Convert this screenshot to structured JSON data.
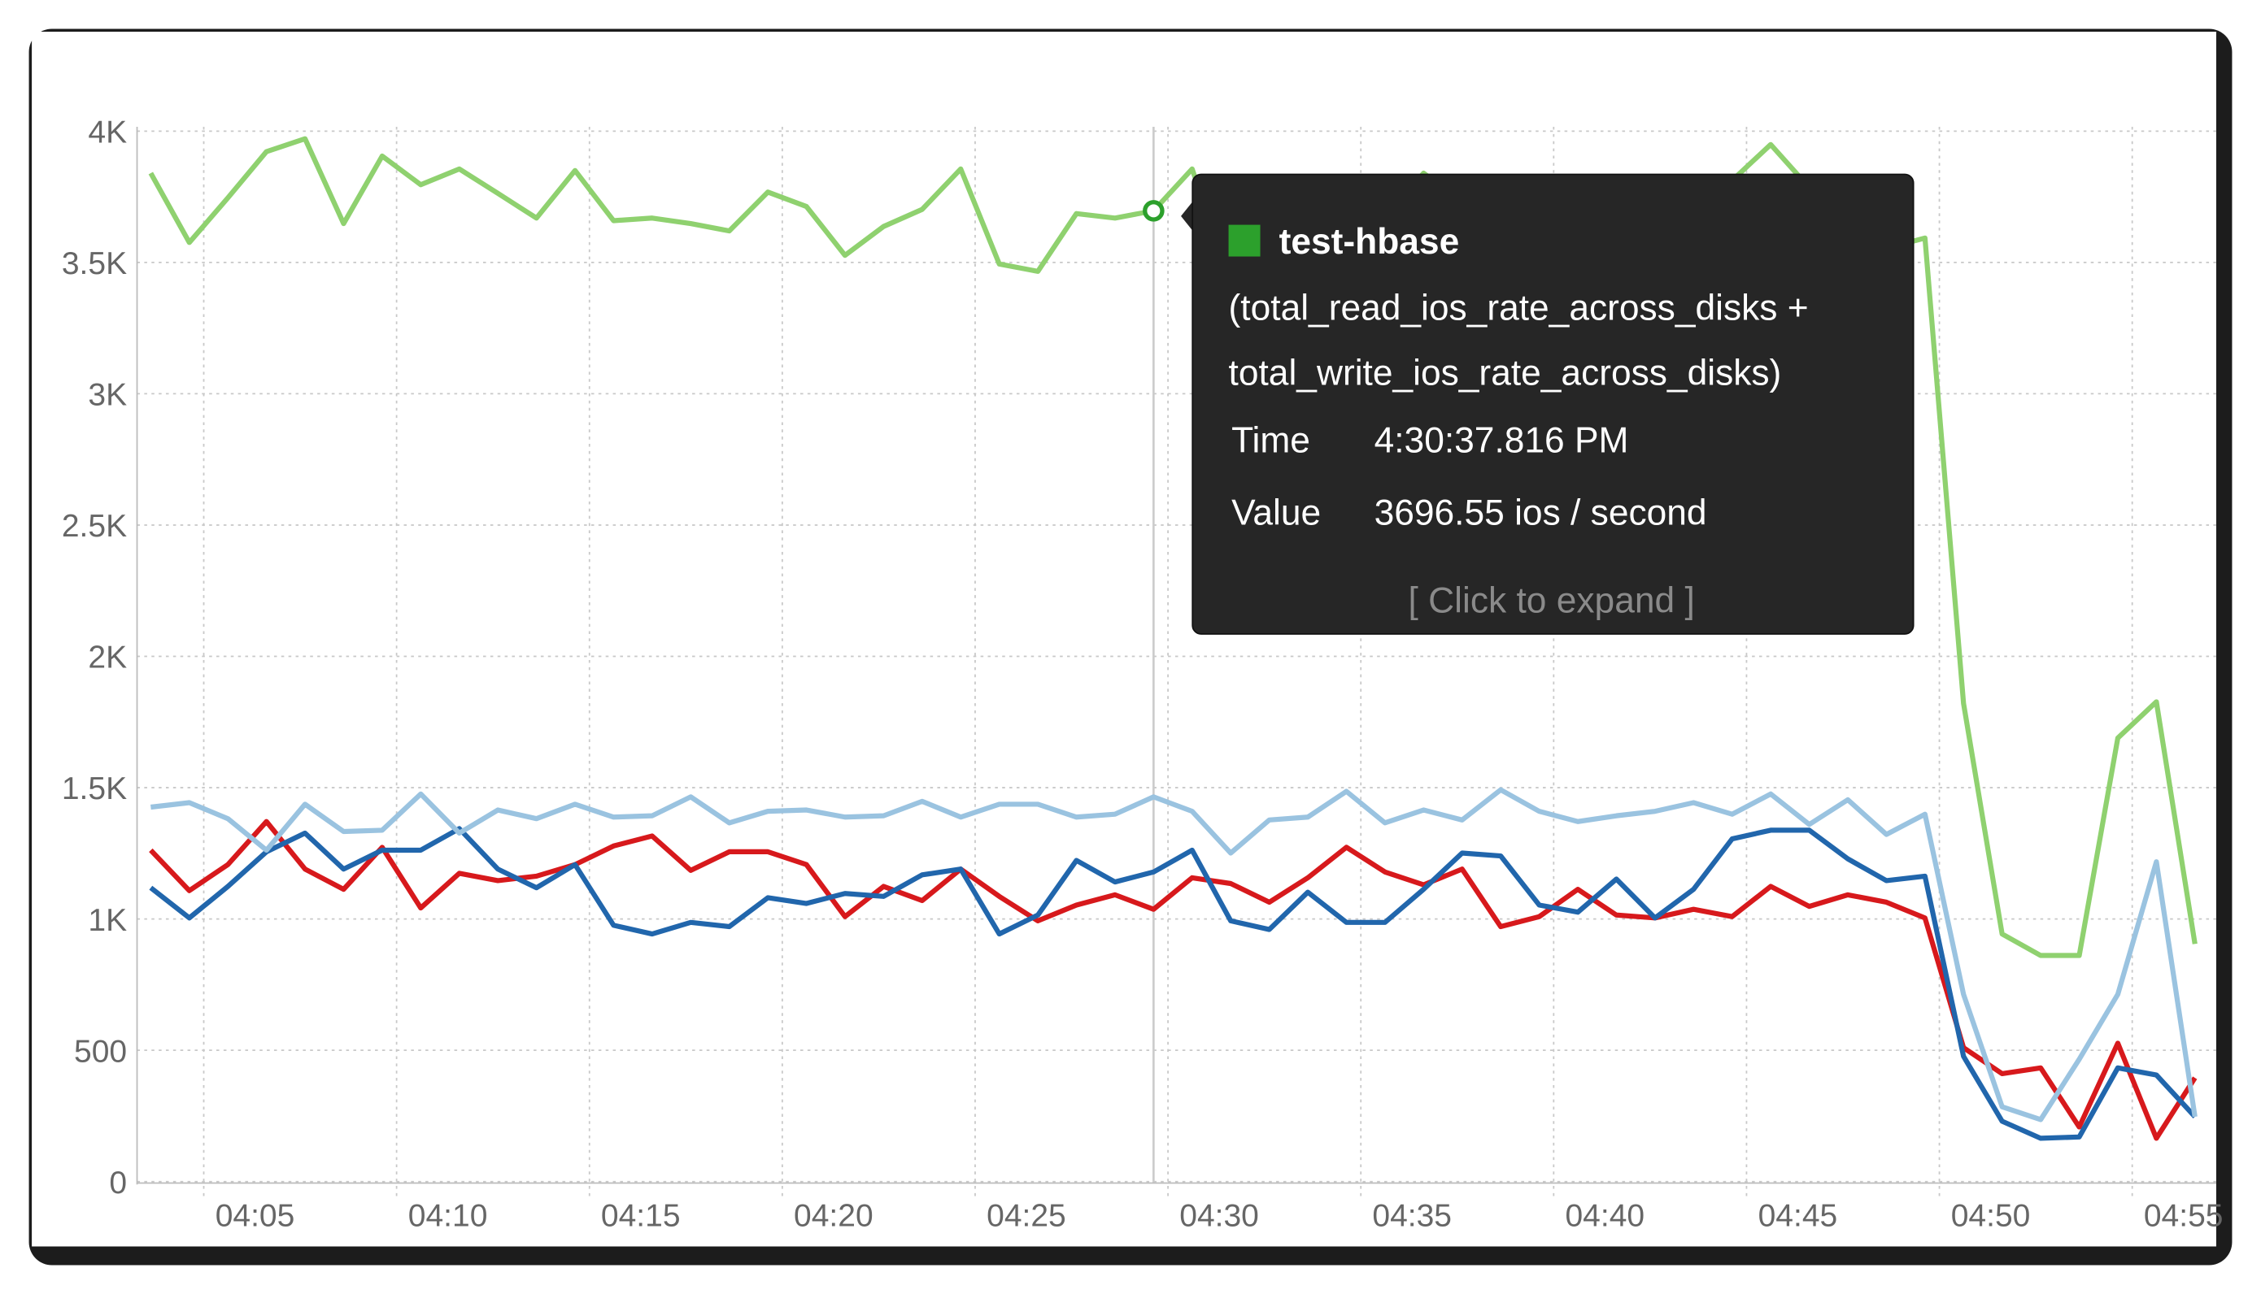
{
  "chart_data": {
    "type": "line",
    "categories": [
      null,
      "04:05",
      null,
      null,
      null,
      null,
      "04:10",
      null,
      null,
      null,
      null,
      "04:15",
      null,
      null,
      null,
      null,
      "04:20",
      null,
      null,
      null,
      null,
      "04:25",
      null,
      null,
      null,
      null,
      "04:30",
      null,
      null,
      null,
      null,
      "04:35",
      null,
      null,
      null,
      null,
      "04:40",
      null,
      null,
      null,
      null,
      "04:45",
      null,
      null,
      null,
      null,
      "04:50",
      null,
      null,
      null,
      null,
      "04:55",
      null,
      null
    ],
    "ylim": [
      0,
      4000
    ],
    "yticks": [
      0,
      500,
      {
        "value": 1000,
        "label": "1K"
      },
      {
        "value": 1500,
        "label": "1.5K"
      },
      {
        "value": 2000,
        "label": "2K"
      },
      {
        "value": 2500,
        "label": "2.5K"
      },
      {
        "value": 3000,
        "label": "3K"
      },
      {
        "value": 3500,
        "label": "3.5K"
      },
      {
        "value": 4000,
        "label": "4K"
      }
    ],
    "grid": true,
    "series": [
      {
        "name": "test-hbase",
        "color": "#8fd16f",
        "values": [
          3840,
          3576,
          3746,
          3922,
          3971,
          3648,
          3905,
          3796,
          3856,
          3763,
          3669,
          3850,
          3659,
          3669,
          3648,
          3620,
          3768,
          3713,
          3527,
          3637,
          3702,
          3856,
          3494,
          3466,
          3686,
          3669,
          3696.55,
          3856,
          3428,
          3700,
          3768,
          3565,
          3675,
          3840,
          3730,
          3510,
          3538,
          3620,
          3455,
          3620,
          3730,
          3812,
          3949,
          3785,
          3796,
          3554,
          3593,
          1821,
          943,
          861,
          861,
          1689,
          1827,
          905
        ]
      },
      {
        "color": "#9ac3e0",
        "values": [
          1426,
          1443,
          1382,
          1262,
          1437,
          1333,
          1338,
          1476,
          1327,
          1415,
          1382,
          1437,
          1388,
          1393,
          1465,
          1366,
          1410,
          1415,
          1388,
          1393,
          1448,
          1388,
          1437,
          1437,
          1388,
          1399,
          1465,
          1410,
          1251,
          1377,
          1388,
          1486,
          1366,
          1415,
          1377,
          1492,
          1410,
          1371,
          1393,
          1410,
          1443,
          1399,
          1476,
          1360,
          1454,
          1322,
          1399,
          713,
          285,
          236,
          466,
          713,
          1218,
          247
        ]
      },
      {
        "color": "#2166ac",
        "values": [
          1119,
          1004,
          1124,
          1256,
          1327,
          1190,
          1262,
          1262,
          1344,
          1190,
          1119,
          1207,
          976,
          943,
          987,
          971,
          1081,
          1059,
          1097,
          1086,
          1168,
          1190,
          943,
          1015,
          1223,
          1141,
          1179,
          1262,
          993,
          960,
          1102,
          987,
          987,
          1113,
          1251,
          1240,
          1053,
          1026,
          1152,
          1004,
          1113,
          1305,
          1338,
          1338,
          1229,
          1146,
          1163,
          477,
          230,
          165,
          170,
          433,
          406,
          247
        ]
      },
      {
        "color": "#d7191c",
        "values": [
          1262,
          1108,
          1207,
          1371,
          1190,
          1113,
          1273,
          1042,
          1174,
          1146,
          1163,
          1207,
          1278,
          1316,
          1185,
          1256,
          1256,
          1207,
          1009,
          1124,
          1070,
          1190,
          1086,
          993,
          1053,
          1092,
          1037,
          1157,
          1135,
          1064,
          1157,
          1273,
          1179,
          1130,
          1190,
          971,
          1009,
          1113,
          1015,
          1004,
          1037,
          1009,
          1124,
          1048,
          1092,
          1064,
          1004,
          510,
          411,
          433,
          208,
          527,
          165,
          395
        ]
      }
    ],
    "tooltip": {
      "expression": [
        "(total_read_ios_rate_across_disks +",
        "total_write_ios_rate_across_disks)"
      ],
      "time_label": "Time",
      "time": "4:30:37.816 PM",
      "value_label": "Value",
      "value": "3696.55 ios / second",
      "action": "[ Click to expand ]"
    }
  }
}
